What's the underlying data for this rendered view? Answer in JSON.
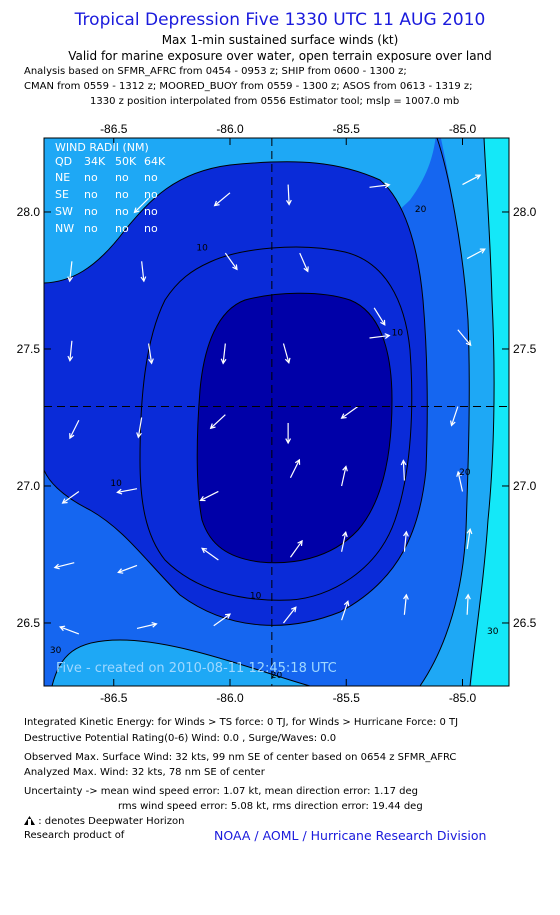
{
  "header": {
    "title": "Tropical Depression Five 1330 UTC 11 AUG 2010",
    "subtitle_1": "Max 1-min sustained surface winds (kt)",
    "subtitle_2": "Valid for marine exposure over water, open terrain exposure over land",
    "analysis_lines": [
      "Analysis based on SFMR_AFRC from 0454 - 0953 z; SHIP from 0600 - 1300 z;",
      "CMAN from 0559 - 1312 z; MOORED_BUOY from 0559 - 1300 z; ASOS from 0613 - 1319 z;",
      "1330 z position interpolated from 0556 Estimator tool; mslp = 1007.0 mb"
    ]
  },
  "chart_data": {
    "type": "contour",
    "xlim": [
      -86.8,
      -84.8
    ],
    "ylim": [
      26.27,
      28.27
    ],
    "x_ticks": [
      -86.5,
      -86.0,
      -85.5,
      -85.0
    ],
    "y_ticks": [
      26.5,
      27.0,
      27.5,
      28.0
    ],
    "x_tick_labels": [
      "-86.5",
      "-86.0",
      "-85.5",
      "-85.0"
    ],
    "y_tick_labels": [
      "26.5",
      "27.0",
      "27.5",
      "28.0"
    ],
    "center": {
      "lon": -85.82,
      "lat": 27.29
    },
    "contour_labels": [
      {
        "text": "10",
        "lon": -86.12,
        "lat": 27.86
      },
      {
        "text": "10",
        "lon": -85.28,
        "lat": 27.55
      },
      {
        "text": "10",
        "lon": -86.49,
        "lat": 27.0
      },
      {
        "text": "10",
        "lon": -85.89,
        "lat": 26.59
      },
      {
        "text": "20",
        "lon": -85.18,
        "lat": 28.0
      },
      {
        "text": "20",
        "lon": -84.99,
        "lat": 27.04
      },
      {
        "text": "20",
        "lon": -85.8,
        "lat": 26.3
      },
      {
        "text": "30",
        "lon": -84.87,
        "lat": 26.46
      },
      {
        "text": "30",
        "lon": -86.75,
        "lat": 26.39
      }
    ],
    "wind_radii": {
      "title": "WIND RADII (NM)",
      "header": [
        "QD",
        "34K",
        "50K",
        "64K"
      ],
      "rows": [
        [
          "NE",
          "no",
          "no",
          "no"
        ],
        [
          "SE",
          "no",
          "no",
          "no"
        ],
        [
          "SW",
          "no",
          "no",
          "no"
        ],
        [
          "NW",
          "no",
          "no",
          "no"
        ]
      ]
    },
    "wind_vectors": [
      {
        "lon": -86.35,
        "lat": 28.05,
        "u": -0.5,
        "v": -0.5
      },
      {
        "lon": -86.0,
        "lat": 28.07,
        "u": -0.6,
        "v": -0.5
      },
      {
        "lon": -85.75,
        "lat": 28.1,
        "u": 0.05,
        "v": -1.0
      },
      {
        "lon": -85.4,
        "lat": 28.09,
        "u": 0.8,
        "v": 0.1
      },
      {
        "lon": -85.0,
        "lat": 28.1,
        "u": 0.75,
        "v": 0.4
      },
      {
        "lon": -86.68,
        "lat": 27.82,
        "u": -0.1,
        "v": -0.9
      },
      {
        "lon": -86.38,
        "lat": 27.82,
        "u": 0.1,
        "v": -0.9
      },
      {
        "lon": -86.02,
        "lat": 27.85,
        "u": 0.5,
        "v": -0.7
      },
      {
        "lon": -85.7,
        "lat": 27.85,
        "u": 0.35,
        "v": -0.8
      },
      {
        "lon": -85.38,
        "lat": 27.65,
        "u": 0.5,
        "v": -0.8
      },
      {
        "lon": -84.98,
        "lat": 27.83,
        "u": 0.75,
        "v": 0.4
      },
      {
        "lon": -86.68,
        "lat": 27.53,
        "u": -0.1,
        "v": -1.0
      },
      {
        "lon": -86.35,
        "lat": 27.52,
        "u": 0.15,
        "v": -1.0
      },
      {
        "lon": -86.02,
        "lat": 27.52,
        "u": -0.1,
        "v": -0.9
      },
      {
        "lon": -85.77,
        "lat": 27.52,
        "u": 0.25,
        "v": -0.9
      },
      {
        "lon": -85.4,
        "lat": 27.54,
        "u": 0.8,
        "v": 0.1
      },
      {
        "lon": -85.02,
        "lat": 27.57,
        "u": 0.5,
        "v": -0.6
      },
      {
        "lon": -86.65,
        "lat": 27.24,
        "u": -0.4,
        "v": -0.8
      },
      {
        "lon": -86.38,
        "lat": 27.25,
        "u": -0.15,
        "v": -0.9
      },
      {
        "lon": -86.02,
        "lat": 27.26,
        "u": -0.65,
        "v": -0.6
      },
      {
        "lon": -85.75,
        "lat": 27.23,
        "u": 0.0,
        "v": -1.0
      },
      {
        "lon": -85.45,
        "lat": 27.29,
        "u": -0.7,
        "v": -0.5
      },
      {
        "lon": -85.02,
        "lat": 27.29,
        "u": -0.3,
        "v": -0.9
      },
      {
        "lon": -86.65,
        "lat": 26.98,
        "u": -0.7,
        "v": -0.5
      },
      {
        "lon": -86.4,
        "lat": 26.99,
        "u": -0.8,
        "v": -0.15
      },
      {
        "lon": -86.05,
        "lat": 26.98,
        "u": -0.8,
        "v": -0.4
      },
      {
        "lon": -85.74,
        "lat": 27.03,
        "u": 0.4,
        "v": 0.8
      },
      {
        "lon": -85.52,
        "lat": 27.0,
        "u": 0.2,
        "v": 0.9
      },
      {
        "lon": -85.25,
        "lat": 27.02,
        "u": -0.05,
        "v": 1.0
      },
      {
        "lon": -85.0,
        "lat": 26.98,
        "u": -0.2,
        "v": 0.9
      },
      {
        "lon": -86.67,
        "lat": 26.72,
        "u": -0.8,
        "v": -0.2
      },
      {
        "lon": -86.4,
        "lat": 26.71,
        "u": -0.8,
        "v": -0.3
      },
      {
        "lon": -86.05,
        "lat": 26.73,
        "u": -0.7,
        "v": 0.5
      },
      {
        "lon": -85.74,
        "lat": 26.74,
        "u": 0.5,
        "v": 0.7
      },
      {
        "lon": -85.52,
        "lat": 26.76,
        "u": 0.2,
        "v": 0.95
      },
      {
        "lon": -85.25,
        "lat": 26.76,
        "u": 0.1,
        "v": 1.0
      },
      {
        "lon": -84.98,
        "lat": 26.77,
        "u": 0.15,
        "v": 1.0
      },
      {
        "lon": -86.65,
        "lat": 26.46,
        "u": -0.8,
        "v": 0.3
      },
      {
        "lon": -86.4,
        "lat": 26.48,
        "u": 0.85,
        "v": 0.2
      },
      {
        "lon": -86.07,
        "lat": 26.49,
        "u": 0.7,
        "v": 0.5
      },
      {
        "lon": -85.77,
        "lat": 26.5,
        "u": 0.55,
        "v": 0.7
      },
      {
        "lon": -85.52,
        "lat": 26.51,
        "u": 0.3,
        "v": 0.9
      },
      {
        "lon": -85.25,
        "lat": 26.53,
        "u": 0.1,
        "v": 1.0
      },
      {
        "lon": -84.98,
        "lat": 26.53,
        "u": 0.05,
        "v": 1.0
      }
    ],
    "watermark": "Five - created on 2010-08-11 12:45:18 UTC",
    "colors": {
      "level_0": "#0000a8",
      "level_10": "#0a2bd8",
      "level_20": "#1566f0",
      "level_30": "#1ea8f5",
      "level_40": "#14e8f8",
      "vector": "#ffffff",
      "contour": "#000000"
    }
  },
  "footer": {
    "line_1": "Integrated Kinetic Energy:  for Winds > TS force: 0 TJ,  for Winds > Hurricane Force: 0 TJ",
    "line_2": "Destructive Potential Rating(0-6)   Wind: 0.0 , Surge/Waves: 0.0",
    "line_3": "Observed Max. Surface Wind: 32 kts, 99 nm SE of center based on 0654 z SFMR_AFRC",
    "line_4": "Analyzed Max. Wind: 32 kts, 78 nm SE of center",
    "line_5": "Uncertainty -> mean wind speed error: 1.07 kt,   mean direction error: 1.17 deg",
    "line_6": "rms wind speed error: 5.08 kt,   rms direction error: 19.44 deg",
    "line_7": ": denotes Deepwater Horizon",
    "line_8": "Research product of",
    "org": "NOAA / AOML / Hurricane Research Division"
  }
}
